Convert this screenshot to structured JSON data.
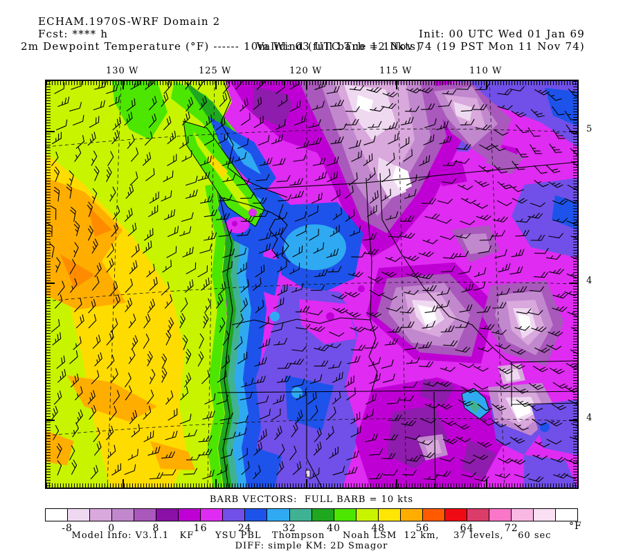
{
  "header": {
    "title_left": "ECHAM.1970S-WRF Domain 2",
    "init": "Init: 00 UTC Wed 01 Jan 69",
    "fcst": "Fcst: **** h",
    "valid": "Valid: 03 UTC Tue 12 Nov 74 (19 PST Mon 11 Nov 74)",
    "field_label": "2m Dewpoint Temperature (°F)",
    "dashes": "------",
    "wind_label": "10m Wind (full barb = 10kts)"
  },
  "map": {
    "lon_labels": [
      "130 W",
      "125 W",
      "120 W",
      "115 W",
      "110 W"
    ],
    "lat_labels": [
      "5",
      "4",
      "4"
    ]
  },
  "legend": {
    "barb_header": "BARB VECTORS:  FULL BARB = 10 kts",
    "ticks": [
      "-8",
      "0",
      "8",
      "16",
      "24",
      "32",
      "40",
      "48",
      "56",
      "64",
      "72"
    ],
    "unit": "°F",
    "cell_span_f": 4,
    "range_f": [
      -12,
      84
    ],
    "colors": [
      "#FFFFFF",
      "#EFD9F1",
      "#D9A8DC",
      "#C288CE",
      "#A958BC",
      "#8A10A8",
      "#BF00D4",
      "#DF2BF2",
      "#7050E8",
      "#1D53EA",
      "#2FAAF2",
      "#3FB294",
      "#1FA81F",
      "#4CE600",
      "#C8F400",
      "#FFE605",
      "#FFAE00",
      "#FF5A00",
      "#EF0A14",
      "#DC3C69",
      "#F976C8",
      "#F9B8E4",
      "#FBDFF3",
      "#FFFFFF"
    ]
  },
  "footer": {
    "model_info": "Model Info: V3.1.1   KF      YSU PBL   Thompson     Noah LSM  12 km,    37 levels,    60 sec",
    "diff": "DIFF: simple KM: 2D Smagor"
  },
  "palette": {
    "ocean_yellow": "#FFDC00",
    "orange": "#FFAE00",
    "yellow_green": "#C8F400",
    "bright_green": "#4CE600",
    "green": "#1FA81F",
    "teal": "#3FB294",
    "cyan": "#2FAAF2",
    "blue": "#1D53EA",
    "blue_violet": "#7050E8",
    "magenta": "#DF2BF2",
    "dark_magenta": "#BF00D4",
    "dark_purple": "#8E1CAC",
    "purple": "#A958BC",
    "lavender": "#C288CE",
    "pale_lavender": "#EFD9F1",
    "barb_color": "#000000"
  }
}
